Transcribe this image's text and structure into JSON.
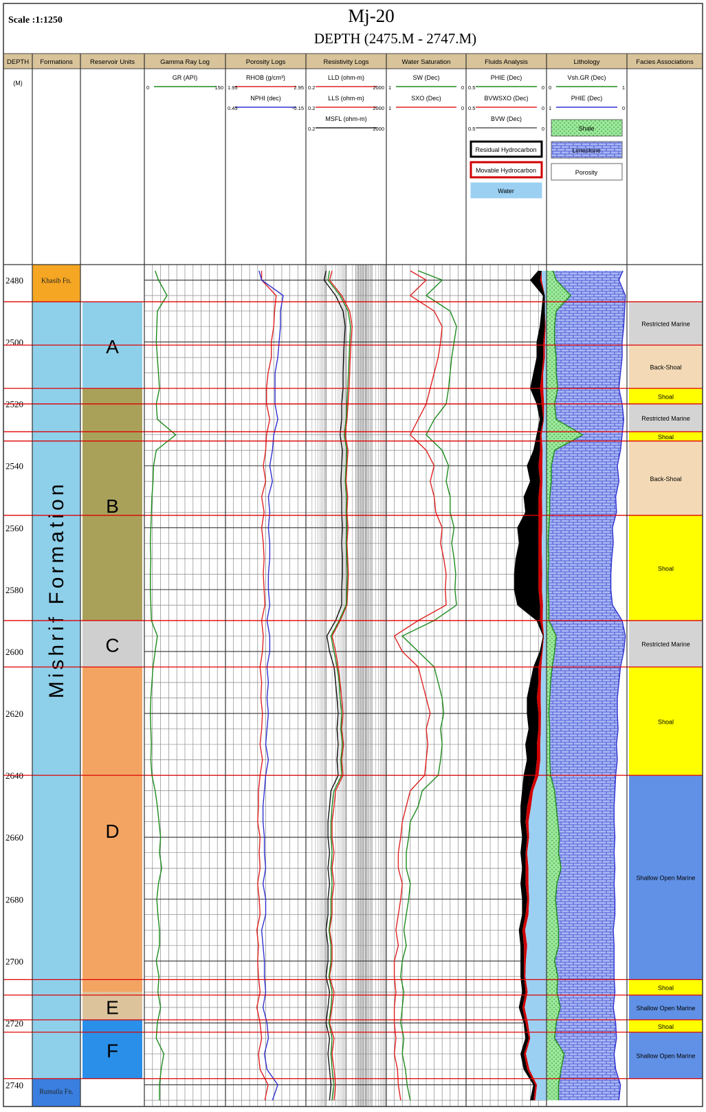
{
  "header": {
    "scale": "Scale :1:1250",
    "well": "Mj-20",
    "depth_range": "DEPTH (2475.M - 2747.M)"
  },
  "columns": [
    {
      "key": "depth",
      "label": "DEPTH"
    },
    {
      "key": "formations",
      "label": "Formations"
    },
    {
      "key": "units",
      "label": "Reservoir Units"
    },
    {
      "key": "gr",
      "label": "Gamma Ray Log"
    },
    {
      "key": "por",
      "label": "Porosity Logs"
    },
    {
      "key": "res",
      "label": "Resistivity Logs"
    },
    {
      "key": "sw",
      "label": "Water Saturation"
    },
    {
      "key": "fluid",
      "label": "Fluids Analysis"
    },
    {
      "key": "lith",
      "label": "Lithology"
    },
    {
      "key": "facies",
      "label": "Facies Associations"
    }
  ],
  "depth_unit": "(M)",
  "curve_headers": {
    "gr": [
      {
        "name": "GR (API)",
        "min": "0",
        "max": "150",
        "color": "#1b8a1b"
      }
    ],
    "por": [
      {
        "name": "RHOB (g/cm³)",
        "min": "1.95",
        "max": "2.95",
        "color": "#e02020"
      },
      {
        "name": "NPHI (dec)",
        "min": "0.45",
        "max": "-0.15",
        "color": "#3030d0"
      }
    ],
    "res": [
      {
        "name": "LLD (ohm-m)",
        "min": "0.2",
        "max": "2000",
        "color": "#e02020"
      },
      {
        "name": "LLS (ohm-m)",
        "min": "0.2",
        "max": "2000",
        "color": "#e02020"
      },
      {
        "name": "MSFL (ohm-m)",
        "min": "0.2",
        "max": "2000",
        "color": "#222222"
      }
    ],
    "sw": [
      {
        "name": "SW (Dec)",
        "min": "1",
        "max": "0",
        "color": "#1b8a1b"
      },
      {
        "name": "SXO (Dec)",
        "min": "1",
        "max": "0",
        "color": "#e02020"
      }
    ],
    "fluid": [
      {
        "name": "PHIE (Dec)",
        "min": "0.5",
        "max": "0",
        "color": "#1b8a1b"
      },
      {
        "name": "BVWSXO (Dec)",
        "min": "0.5",
        "max": "0",
        "color": "#e02020"
      },
      {
        "name": "BVW (Dec)",
        "min": "0.5",
        "max": "0",
        "color": "#555555"
      }
    ],
    "lith": [
      {
        "name": "Vsh.GR (Dec)",
        "min": "0",
        "max": "1",
        "color": "#1b8a1b"
      },
      {
        "name": "PHIE (Dec)",
        "min": "1",
        "max": "0",
        "color": "#3030d0"
      }
    ]
  },
  "fluid_legend": [
    "Residual Hydrocarbon",
    "Movable Hydrocarbon",
    "Water"
  ],
  "lith_legend": [
    "Shale",
    "Limestone",
    "Porosity"
  ],
  "depth_ticks": [
    "2480",
    "2500",
    "2520",
    "2540",
    "2560",
    "2580",
    "2600",
    "2620",
    "2640",
    "2660",
    "2680",
    "2700",
    "2720",
    "2740"
  ],
  "formations": [
    {
      "name": "Khasib Fn.",
      "top": 2475,
      "bottom": 2487,
      "color": "#f5a623"
    },
    {
      "name": "Mishrif Formation",
      "top": 2487,
      "bottom": 2738,
      "color": "#8ecfea"
    },
    {
      "name": "Rumaila Fn.",
      "top": 2738,
      "bottom": 2747,
      "color": "#3a7fe0"
    }
  ],
  "reservoir_units": [
    {
      "name": "A",
      "top": 2487,
      "bottom": 2515,
      "color": "#8ecfea"
    },
    {
      "name": "B",
      "top": 2515,
      "bottom": 2590,
      "color": "#a9a15a"
    },
    {
      "name": "C",
      "top": 2590,
      "bottom": 2605,
      "color": "#cfcfcf"
    },
    {
      "name": "D",
      "top": 2605,
      "bottom": 2710,
      "color": "#f3a462"
    },
    {
      "name": "E",
      "top": 2710,
      "bottom": 2719,
      "color": "#dcc39c"
    },
    {
      "name": "F",
      "top": 2719,
      "bottom": 2738,
      "color": "#2a8fe8"
    }
  ],
  "facies": [
    {
      "name": "Restricted Marine",
      "top": 2487,
      "bottom": 2501,
      "color": "#d4d4d4"
    },
    {
      "name": "Back-Shoal",
      "top": 2501,
      "bottom": 2515,
      "color": "#f3d9b6"
    },
    {
      "name": "Shoal",
      "top": 2515,
      "bottom": 2520,
      "color": "#ffff00"
    },
    {
      "name": "Restricted Marine",
      "top": 2520,
      "bottom": 2529,
      "color": "#d4d4d4"
    },
    {
      "name": "Shoal",
      "top": 2529,
      "bottom": 2532,
      "color": "#ffff00"
    },
    {
      "name": "Back-Shoal",
      "top": 2532,
      "bottom": 2556,
      "color": "#f3d9b6"
    },
    {
      "name": "Shoal",
      "top": 2556,
      "bottom": 2590,
      "color": "#ffff00"
    },
    {
      "name": "Restricted Marine",
      "top": 2590,
      "bottom": 2605,
      "color": "#d4d4d4"
    },
    {
      "name": "Shoal",
      "top": 2605,
      "bottom": 2640,
      "color": "#ffff00"
    },
    {
      "name": "Shallow Open Marine",
      "top": 2640,
      "bottom": 2706,
      "color": "#6191e6"
    },
    {
      "name": "Shoal",
      "top": 2706,
      "bottom": 2711,
      "color": "#ffff00"
    },
    {
      "name": "Shallow Open Marine",
      "top": 2711,
      "bottom": 2719,
      "color": "#6191e6"
    },
    {
      "name": "Shoal",
      "top": 2719,
      "bottom": 2723,
      "color": "#ffff00"
    },
    {
      "name": "Shallow Open Marine",
      "top": 2723,
      "bottom": 2738,
      "color": "#6191e6"
    }
  ],
  "boundaries_red": [
    2487,
    2501,
    2515,
    2520,
    2529,
    2532,
    2556,
    2590,
    2605,
    2640,
    2706,
    2711,
    2719,
    2723,
    2738
  ],
  "chart_data": {
    "type": "line",
    "title": "Mj-20",
    "subtitle": "DEPTH (2475.M - 2747.M)",
    "ylabel": "DEPTH",
    "ylim": [
      2475,
      2747
    ],
    "grid": true,
    "depth": [
      2477,
      2480,
      2485,
      2490,
      2495,
      2500,
      2505,
      2510,
      2515,
      2520,
      2525,
      2530,
      2535,
      2540,
      2545,
      2550,
      2555,
      2560,
      2565,
      2570,
      2575,
      2580,
      2585,
      2590,
      2595,
      2600,
      2605,
      2610,
      2615,
      2620,
      2625,
      2630,
      2635,
      2640,
      2645,
      2650,
      2655,
      2660,
      2665,
      2670,
      2675,
      2680,
      2685,
      2690,
      2695,
      2700,
      2705,
      2710,
      2715,
      2720,
      2725,
      2730,
      2735,
      2740,
      2745
    ],
    "series": [
      {
        "name": "GR (API)",
        "values": [
          20,
          26,
          42,
          24,
          23,
          22,
          24,
          26,
          28,
          22,
          24,
          58,
          22,
          17,
          16,
          14,
          13,
          12,
          11,
          12,
          11,
          11,
          12,
          13,
          24,
          20,
          16,
          14,
          12,
          11,
          12,
          13,
          12,
          14,
          20,
          24,
          27,
          30,
          28,
          32,
          26,
          23,
          25,
          28,
          28,
          22,
          27,
          25,
          30,
          24,
          22,
          36,
          31,
          28,
          28
        ]
      },
      {
        "name": "RHOB (g/cm³)",
        "values": [
          2.4,
          2.4,
          2.58,
          2.56,
          2.55,
          2.52,
          2.52,
          2.48,
          2.46,
          2.46,
          2.5,
          2.46,
          2.45,
          2.42,
          2.45,
          2.4,
          2.43,
          2.4,
          2.42,
          2.43,
          2.42,
          2.43,
          2.44,
          2.4,
          2.42,
          2.41,
          2.38,
          2.4,
          2.39,
          2.41,
          2.4,
          2.38,
          2.41,
          2.38,
          2.36,
          2.36,
          2.35,
          2.38,
          2.37,
          2.38,
          2.35,
          2.37,
          2.38,
          2.34,
          2.36,
          2.35,
          2.36,
          2.38,
          2.34,
          2.38,
          2.4,
          2.36,
          2.38,
          2.48,
          2.44
        ]
      },
      {
        "name": "NPHI (dec)",
        "values": [
          0.2,
          0.18,
          0.02,
          0.04,
          0.04,
          0.05,
          0.06,
          0.08,
          0.08,
          0.08,
          0.06,
          0.09,
          0.1,
          0.12,
          0.1,
          0.13,
          0.12,
          0.13,
          0.12,
          0.12,
          0.13,
          0.13,
          0.12,
          0.14,
          0.12,
          0.12,
          0.14,
          0.13,
          0.14,
          0.13,
          0.14,
          0.15,
          0.13,
          0.15,
          0.16,
          0.17,
          0.17,
          0.16,
          0.16,
          0.15,
          0.17,
          0.15,
          0.15,
          0.18,
          0.17,
          0.16,
          0.16,
          0.15,
          0.17,
          0.14,
          0.13,
          0.16,
          0.14,
          0.06,
          0.1
        ]
      },
      {
        "name": "LLD (ohm-m)",
        "values": [
          4,
          3,
          12,
          30,
          40,
          35,
          32,
          30,
          28,
          25,
          22,
          18,
          25,
          22,
          20,
          24,
          22,
          25,
          22,
          24,
          26,
          24,
          22,
          10,
          4,
          6,
          8,
          10,
          12,
          14,
          12,
          15,
          12,
          14,
          6,
          5,
          4,
          4,
          5,
          4,
          5,
          4,
          4,
          3,
          4,
          4,
          3,
          5,
          4,
          3,
          5,
          4,
          5,
          6,
          5
        ]
      },
      {
        "name": "LLS (ohm-m)",
        "values": [
          3,
          2.5,
          10,
          25,
          33,
          30,
          28,
          26,
          24,
          22,
          20,
          16,
          22,
          20,
          18,
          21,
          20,
          22,
          20,
          22,
          23,
          22,
          20,
          9,
          3.5,
          5,
          7,
          9,
          10,
          12,
          11,
          13,
          11,
          12,
          5,
          4,
          3.5,
          3.5,
          4,
          3.5,
          4,
          3.5,
          3.5,
          2.8,
          3.5,
          3.5,
          2.8,
          4,
          3.5,
          2.8,
          4,
          3.5,
          4,
          5,
          4
        ]
      },
      {
        "name": "MSFL (ohm-m)",
        "values": [
          2,
          1.6,
          6,
          14,
          18,
          16,
          15,
          14,
          14,
          12,
          12,
          10,
          13,
          12,
          11,
          12,
          12,
          13,
          12,
          13,
          13,
          12,
          12,
          6,
          2.2,
          3,
          5,
          6,
          7,
          8,
          7,
          8,
          7,
          8,
          3.5,
          3,
          2.5,
          2.5,
          3,
          2.5,
          3,
          2.5,
          2.5,
          2,
          2.5,
          2.5,
          2,
          3,
          2.5,
          2,
          3,
          2.5,
          3,
          3.5,
          3
        ]
      },
      {
        "name": "SW (Dec)",
        "values": [
          0.6,
          0.3,
          0.5,
          0.2,
          0.12,
          0.15,
          0.18,
          0.2,
          0.22,
          0.25,
          0.4,
          0.5,
          0.3,
          0.22,
          0.25,
          0.2,
          0.2,
          0.15,
          0.18,
          0.15,
          0.13,
          0.14,
          0.12,
          0.4,
          0.8,
          0.6,
          0.4,
          0.35,
          0.3,
          0.28,
          0.32,
          0.3,
          0.32,
          0.35,
          0.55,
          0.6,
          0.7,
          0.72,
          0.75,
          0.75,
          0.7,
          0.72,
          0.75,
          0.78,
          0.75,
          0.8,
          0.82,
          0.78,
          0.8,
          0.82,
          0.78,
          0.8,
          0.76,
          0.74,
          0.7
        ]
      },
      {
        "name": "SXO (Dec)",
        "values": [
          0.7,
          0.5,
          0.7,
          0.4,
          0.3,
          0.32,
          0.35,
          0.4,
          0.45,
          0.5,
          0.6,
          0.7,
          0.5,
          0.4,
          0.45,
          0.4,
          0.38,
          0.3,
          0.32,
          0.28,
          0.25,
          0.26,
          0.25,
          0.6,
          0.9,
          0.8,
          0.6,
          0.55,
          0.5,
          0.45,
          0.5,
          0.48,
          0.5,
          0.52,
          0.7,
          0.75,
          0.8,
          0.82,
          0.85,
          0.85,
          0.8,
          0.82,
          0.85,
          0.88,
          0.85,
          0.9,
          0.9,
          0.88,
          0.9,
          0.9,
          0.88,
          0.9,
          0.86,
          0.85,
          0.82
        ]
      },
      {
        "name": "PHIE (Dec)",
        "values": [
          0.05,
          0.1,
          0.02,
          0.03,
          0.04,
          0.06,
          0.06,
          0.08,
          0.1,
          0.06,
          0.04,
          0.06,
          0.08,
          0.12,
          0.1,
          0.14,
          0.13,
          0.18,
          0.17,
          0.19,
          0.2,
          0.2,
          0.18,
          0.06,
          0.02,
          0.04,
          0.08,
          0.1,
          0.12,
          0.12,
          0.11,
          0.13,
          0.12,
          0.14,
          0.15,
          0.16,
          0.16,
          0.15,
          0.16,
          0.15,
          0.16,
          0.15,
          0.15,
          0.17,
          0.16,
          0.16,
          0.16,
          0.15,
          0.17,
          0.14,
          0.13,
          0.16,
          0.14,
          0.08,
          0.1
        ]
      },
      {
        "name": "BVWSXO (Dec)",
        "values": [
          0.03,
          0.04,
          0.01,
          0.01,
          0.01,
          0.02,
          0.02,
          0.03,
          0.04,
          0.03,
          0.02,
          0.04,
          0.04,
          0.05,
          0.04,
          0.05,
          0.05,
          0.05,
          0.05,
          0.05,
          0.05,
          0.05,
          0.04,
          0.04,
          0.02,
          0.03,
          0.05,
          0.05,
          0.06,
          0.05,
          0.05,
          0.06,
          0.06,
          0.07,
          0.1,
          0.12,
          0.13,
          0.12,
          0.13,
          0.13,
          0.13,
          0.12,
          0.13,
          0.15,
          0.14,
          0.14,
          0.14,
          0.13,
          0.15,
          0.13,
          0.11,
          0.14,
          0.12,
          0.07,
          0.08
        ]
      },
      {
        "name": "BVW (Dec)",
        "values": [
          0.03,
          0.03,
          0.01,
          0.01,
          0.005,
          0.01,
          0.01,
          0.02,
          0.02,
          0.015,
          0.016,
          0.03,
          0.024,
          0.026,
          0.025,
          0.028,
          0.026,
          0.027,
          0.03,
          0.028,
          0.026,
          0.028,
          0.022,
          0.024,
          0.016,
          0.024,
          0.032,
          0.035,
          0.036,
          0.034,
          0.035,
          0.039,
          0.038,
          0.049,
          0.083,
          0.096,
          0.112,
          0.108,
          0.12,
          0.112,
          0.112,
          0.108,
          0.112,
          0.133,
          0.12,
          0.128,
          0.131,
          0.117,
          0.136,
          0.115,
          0.101,
          0.128,
          0.106,
          0.059,
          0.07
        ]
      },
      {
        "name": "Vsh.GR (Dec)",
        "values": [
          0.08,
          0.12,
          0.3,
          0.12,
          0.1,
          0.1,
          0.12,
          0.12,
          0.14,
          0.1,
          0.12,
          0.45,
          0.1,
          0.06,
          0.06,
          0.04,
          0.04,
          0.03,
          0.02,
          0.03,
          0.02,
          0.02,
          0.03,
          0.03,
          0.12,
          0.1,
          0.07,
          0.05,
          0.04,
          0.03,
          0.04,
          0.04,
          0.04,
          0.05,
          0.1,
          0.12,
          0.14,
          0.16,
          0.15,
          0.18,
          0.13,
          0.11,
          0.13,
          0.15,
          0.15,
          0.1,
          0.14,
          0.13,
          0.17,
          0.12,
          0.1,
          0.22,
          0.18,
          0.15,
          0.15
        ]
      }
    ]
  }
}
